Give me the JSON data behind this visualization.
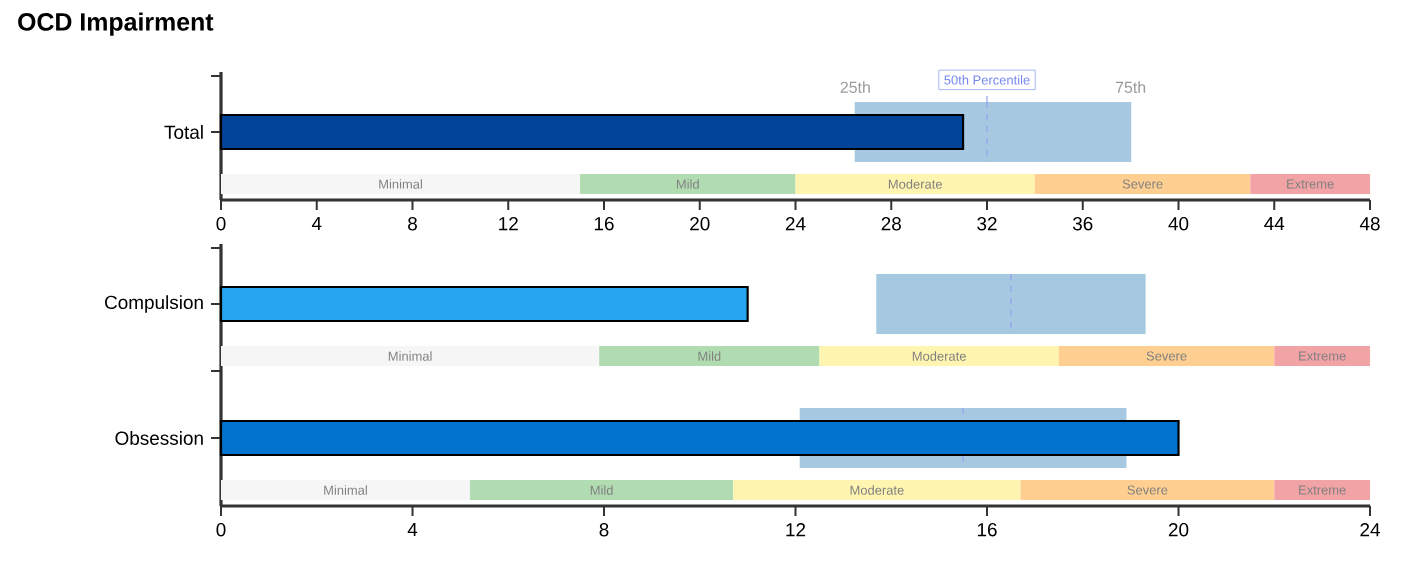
{
  "chart_data": [
    {
      "type": "bar",
      "orientation": "horizontal",
      "title": "OCD Impairment",
      "categories": [
        "Total"
      ],
      "xlim": [
        0,
        48
      ],
      "xticks": [
        0,
        4,
        8,
        12,
        16,
        20,
        24,
        28,
        32,
        36,
        40,
        44,
        48
      ],
      "annotations": [
        "25th",
        "75th",
        {
          "text": "50th Percentile",
          "x": 32
        }
      ],
      "series": [
        {
          "type": "box",
          "color": "#a6c9e1",
          "boxes": [
            {
              "low": 26.5,
              "q1": 26.5,
              "median": 32,
              "q3": 38,
              "high": 38
            }
          ]
        },
        {
          "colors": [
            "#03449b"
          ],
          "values": [
            31
          ]
        },
        {
          "name": "Minimal",
          "color": "#f6f6f6",
          "base": [
            0
          ],
          "values": [
            15
          ]
        },
        {
          "name": "Mild",
          "color": "#b1dcb1",
          "base": [
            15
          ],
          "values": [
            9
          ]
        },
        {
          "name": "Moderate",
          "color": "#fff5b0",
          "base": [
            24
          ],
          "values": [
            10
          ]
        },
        {
          "name": "Severe",
          "color": "#fecf90",
          "base": [
            34
          ],
          "values": [
            9
          ]
        },
        {
          "name": "Extreme",
          "color": "#f2a3a6",
          "base": [
            43
          ],
          "values": [
            5
          ]
        }
      ]
    },
    {
      "type": "bar",
      "orientation": "horizontal",
      "categories": [
        "Compulsion",
        "Obsession"
      ],
      "xlim": [
        0,
        24
      ],
      "xticks": [
        0,
        4,
        8,
        12,
        16,
        20,
        24
      ],
      "series": [
        {
          "type": "box",
          "color": "#a6c9e1",
          "boxes": [
            {
              "low": 13.7,
              "q1": 13.7,
              "median": 16.5,
              "q3": 19.3,
              "high": 19.3
            },
            {
              "low": 12.1,
              "q1": 12.1,
              "median": 15.5,
              "q3": 18.9,
              "high": 18.9
            }
          ]
        },
        {
          "colors": [
            "#27a5f0",
            "#0074cf"
          ],
          "values": [
            11,
            20
          ]
        },
        {
          "name": "Minimal",
          "color": "#f6f6f6",
          "base": [
            0,
            0
          ],
          "values": [
            7.9,
            5.2
          ]
        },
        {
          "name": "Mild",
          "color": "#b1dcb1",
          "base": [
            7.9,
            5.2
          ],
          "values": [
            4.6,
            5.5
          ]
        },
        {
          "name": "Moderate",
          "color": "#fff5b0",
          "base": [
            12.5,
            10.7
          ],
          "values": [
            5,
            6
          ]
        },
        {
          "name": "Severe",
          "color": "#fecf90",
          "base": [
            17.5,
            16.7
          ],
          "values": [
            4.5,
            5.3
          ]
        },
        {
          "name": "Extreme",
          "color": "#f2a3a6",
          "base": [
            22,
            22
          ],
          "values": [
            2,
            2
          ]
        }
      ]
    }
  ]
}
